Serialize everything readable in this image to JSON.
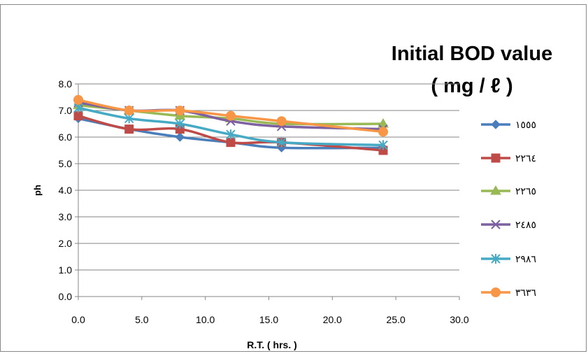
{
  "chart_data": {
    "type": "line",
    "title_line1": "Initial BOD value",
    "title_line2": "( mg / ℓ )",
    "xlabel": "R.T. ( hrs. )",
    "ylabel": "ph",
    "xlim": [
      0,
      30
    ],
    "ylim": [
      0,
      8
    ],
    "x_ticks": [
      "0.0",
      "5.0",
      "10.0",
      "15.0",
      "20.0",
      "25.0",
      "30.0"
    ],
    "y_ticks": [
      "0.0",
      "1.0",
      "2.0",
      "3.0",
      "4.0",
      "5.0",
      "6.0",
      "7.0",
      "8.0"
    ],
    "grid": true,
    "legend_position": "right",
    "x": [
      0,
      4,
      8,
      12,
      16,
      24
    ],
    "series": [
      {
        "name": "١٥٥٥",
        "color": "#4a7ebb",
        "marker": "diamond",
        "values": [
          6.7,
          6.3,
          6.0,
          5.8,
          5.6,
          5.6
        ]
      },
      {
        "name": "٢٢٦٤",
        "color": "#be4b48",
        "marker": "square",
        "values": [
          6.8,
          6.3,
          6.3,
          5.8,
          5.8,
          5.5
        ]
      },
      {
        "name": "٢٢٦٥",
        "color": "#98b954",
        "marker": "triangle",
        "values": [
          7.2,
          7.0,
          6.8,
          6.7,
          6.5,
          6.5
        ]
      },
      {
        "name": "٢٤٨٥",
        "color": "#7d60a0",
        "marker": "x",
        "values": [
          7.3,
          7.0,
          7.0,
          6.6,
          6.4,
          6.3
        ]
      },
      {
        "name": "٢٩٨٦",
        "color": "#46aac5",
        "marker": "asterisk",
        "values": [
          7.1,
          6.7,
          6.5,
          6.1,
          5.8,
          5.7
        ]
      },
      {
        "name": "٣٦٣٦",
        "color": "#f79646",
        "marker": "circle",
        "values": [
          7.4,
          7.0,
          7.0,
          6.8,
          6.6,
          6.2
        ]
      }
    ]
  }
}
